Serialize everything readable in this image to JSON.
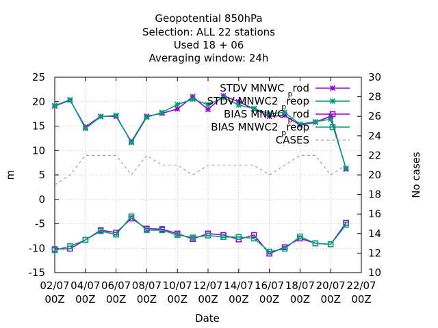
{
  "chart_data": {
    "type": "line",
    "title_lines": [
      "Geopotential 850hPa",
      "Selection: ALL      22 stations",
      "Used  18 + 06",
      "Averaging window: 24h"
    ],
    "xlabel": "Date",
    "ylabel": "m",
    "y2label": "No cases",
    "xlim": [
      2,
      22
    ],
    "ylim": [
      -15,
      25
    ],
    "y2lim": [
      10,
      30
    ],
    "x_ticks": [
      {
        "x": 2,
        "date": "02/07",
        "hour": "00Z"
      },
      {
        "x": 4,
        "date": "04/07",
        "hour": "00Z"
      },
      {
        "x": 6,
        "date": "06/07",
        "hour": "00Z"
      },
      {
        "x": 8,
        "date": "08/07",
        "hour": "00Z"
      },
      {
        "x": 10,
        "date": "10/07",
        "hour": "00Z"
      },
      {
        "x": 12,
        "date": "12/07",
        "hour": "00Z"
      },
      {
        "x": 14,
        "date": "14/07",
        "hour": "00Z"
      },
      {
        "x": 16,
        "date": "16/07",
        "hour": "00Z"
      },
      {
        "x": 18,
        "date": "18/07",
        "hour": "00Z"
      },
      {
        "x": 20,
        "date": "20/07",
        "hour": "00Z"
      },
      {
        "x": 22,
        "date": "22/07",
        "hour": "00Z"
      }
    ],
    "y_ticks": [
      -15,
      -10,
      -5,
      0,
      5,
      10,
      15,
      20,
      25
    ],
    "y2_ticks": [
      10,
      12,
      14,
      16,
      18,
      20,
      22,
      24,
      26,
      28,
      30
    ],
    "grid": true,
    "legend_position": "top-right",
    "x": [
      2,
      3,
      4,
      5,
      6,
      7,
      8,
      9,
      10,
      11,
      12,
      13,
      14,
      15,
      16,
      17,
      18,
      19,
      20,
      21
    ],
    "series": [
      {
        "legend_main": "STDV MNWC",
        "legend_sub": "p",
        "legend_tail": "rod",
        "color": "#9400d3",
        "marker": "star",
        "axis": "y",
        "values": [
          19.1,
          20.3,
          14.8,
          17.0,
          17.0,
          11.8,
          17.0,
          17.6,
          18.5,
          21.0,
          18.4,
          21.2,
          20.0,
          18.5,
          17.0,
          17.2,
          15.2,
          15.8,
          17.0,
          6.2
        ]
      },
      {
        "legend_main": "STDV MNWC2",
        "legend_sub": "p",
        "legend_tail": "reop",
        "color": "#009e73",
        "marker": "star",
        "axis": "y",
        "values": [
          19.2,
          20.4,
          14.5,
          16.9,
          17.2,
          11.6,
          16.8,
          17.8,
          19.4,
          20.5,
          19.4,
          20.8,
          19.3,
          18.6,
          17.5,
          17.8,
          15.4,
          15.9,
          16.4,
          6.4
        ]
      },
      {
        "legend_main": "BIAS MNWC",
        "legend_sub": "p",
        "legend_tail": "rod",
        "color": "#9400d3",
        "marker": "square",
        "axis": "y",
        "values": [
          -10.2,
          -10.1,
          -8.3,
          -6.3,
          -6.8,
          -3.9,
          -6.0,
          -6.1,
          -7.0,
          -8.1,
          -7.0,
          -7.3,
          -8.2,
          -7.3,
          -11.1,
          -9.8,
          -8.0,
          -9.0,
          -9.2,
          -4.8
        ]
      },
      {
        "legend_main": "BIAS MNWC2",
        "legend_sub": "p",
        "legend_tail": "reop",
        "color": "#009e73",
        "marker": "square",
        "axis": "y",
        "values": [
          -10.4,
          -9.6,
          -8.3,
          -6.5,
          -7.2,
          -3.5,
          -6.3,
          -6.3,
          -7.3,
          -7.8,
          -7.4,
          -7.7,
          -7.7,
          -8.0,
          -10.7,
          -10.1,
          -7.6,
          -9.0,
          -9.2,
          -5.2
        ]
      },
      {
        "legend_main": "CASES",
        "legend_sub": "",
        "legend_tail": "",
        "color": "#a0a0a0",
        "marker": "none",
        "dashed": true,
        "axis": "y2",
        "values": [
          19,
          20,
          22,
          22,
          22,
          20,
          22,
          21,
          21,
          20,
          21,
          21,
          21,
          21,
          20,
          21,
          22,
          22,
          20,
          21
        ]
      }
    ]
  }
}
